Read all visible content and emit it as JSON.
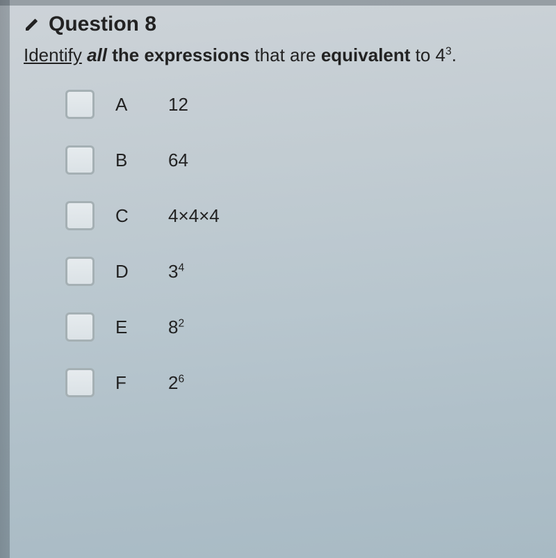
{
  "question": {
    "number_label": "Question 8",
    "prompt_html": "<span class=\"underline\">Identify</span> <span class=\"bold italic\">all</span> <span class=\"bold\">the</span> <span class=\"bold\">expressions</span> that are <span class=\"bold\">equivalent</span> to 4<sup>3</sup>."
  },
  "options": [
    {
      "letter": "A",
      "expr_html": "12"
    },
    {
      "letter": "B",
      "expr_html": "64"
    },
    {
      "letter": "C",
      "expr_html": "4×4×4"
    },
    {
      "letter": "D",
      "expr_html": "3<sup>4</sup>"
    },
    {
      "letter": "E",
      "expr_html": "8<sup>2</sup>"
    },
    {
      "letter": "F",
      "expr_html": "2<sup>6</sup>"
    }
  ],
  "styling": {
    "background_gradient": [
      "#cdd3d8",
      "#a8bac4"
    ],
    "text_color": "#222222",
    "checkbox_border": "#a5b0b4",
    "checkbox_fill_top": "#e6ebee",
    "checkbox_fill_bottom": "#dbe2e6",
    "title_fontsize": 30,
    "title_fontweight": 700,
    "body_fontsize": 26,
    "option_row_gap": 38,
    "checkbox_size": 42,
    "checkbox_radius": 6
  }
}
